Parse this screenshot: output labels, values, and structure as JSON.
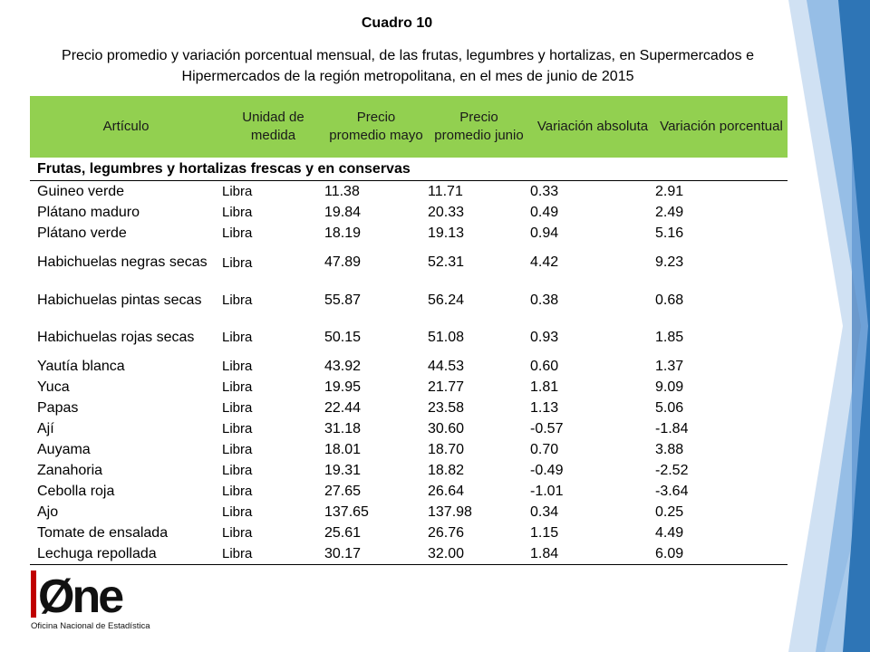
{
  "header": {
    "title": "Cuadro 10",
    "subtitle": "Precio promedio y variación porcentual mensual, de las frutas, legumbres y hortalizas, en Supermercados e Hipermercados de la región metropolitana, en el mes de junio de 2015"
  },
  "table": {
    "columns": [
      "Artículo",
      "Unidad de medida",
      "Precio promedio mayo",
      "Precio promedio junio",
      "Variación absoluta",
      "Variación porcentual"
    ],
    "section": "Frutas, legumbres y hortalizas frescas y en conservas",
    "rows": [
      [
        "Guineo verde",
        "Libra",
        "11.38",
        "11.71",
        "0.33",
        "2.91"
      ],
      [
        "Plátano maduro",
        "Libra",
        "19.84",
        "20.33",
        "0.49",
        "2.49"
      ],
      [
        "Plátano verde",
        "Libra",
        "18.19",
        "19.13",
        "0.94",
        "5.16"
      ],
      [
        "Habichuelas negras secas",
        "Libra",
        "47.89",
        "52.31",
        "4.42",
        "9.23"
      ],
      [
        "Habichuelas pintas secas",
        "Libra",
        "55.87",
        "56.24",
        "0.38",
        "0.68"
      ],
      [
        "Habichuelas rojas secas",
        "Libra",
        "50.15",
        "51.08",
        "0.93",
        "1.85"
      ],
      [
        "Yautía blanca",
        "Libra",
        "43.92",
        "44.53",
        "0.60",
        "1.37"
      ],
      [
        "Yuca",
        "Libra",
        "19.95",
        "21.77",
        "1.81",
        "9.09"
      ],
      [
        "Papas",
        "Libra",
        "22.44",
        "23.58",
        "1.13",
        "5.06"
      ],
      [
        "Ají",
        "Libra",
        "31.18",
        "30.60",
        "-0.57",
        "-1.84"
      ],
      [
        "Auyama",
        "Libra",
        "18.01",
        "18.70",
        "0.70",
        "3.88"
      ],
      [
        "Zanahoria",
        "Libra",
        "19.31",
        "18.82",
        "-0.49",
        "-2.52"
      ],
      [
        "Cebolla roja",
        "Libra",
        "27.65",
        "26.64",
        "-1.01",
        "-3.64"
      ],
      [
        "Ajo",
        "Libra",
        "137.65",
        "137.98",
        "0.34",
        "0.25"
      ],
      [
        "Tomate de ensalada",
        "Libra",
        "25.61",
        "26.76",
        "1.15",
        "4.49"
      ],
      [
        "Lechuga repollada",
        "Libra",
        "30.17",
        "32.00",
        "1.84",
        "6.09"
      ]
    ]
  },
  "logo": {
    "mark": "Øne",
    "tagline": "Oficina Nacional de Estadística"
  },
  "colors": {
    "header_green": "#92d050",
    "accent_blue": "#2e75b6"
  }
}
